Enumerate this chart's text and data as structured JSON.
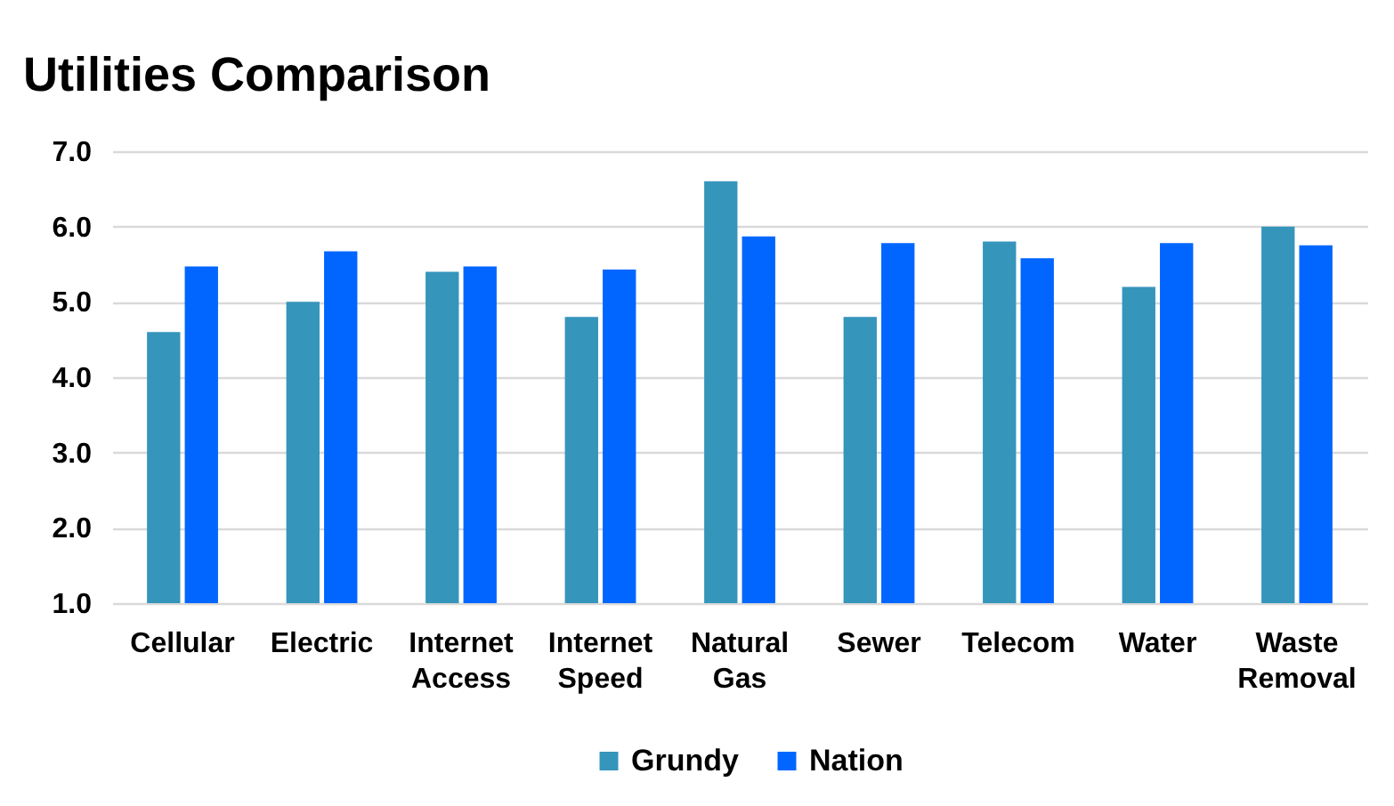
{
  "chart_data": {
    "type": "bar",
    "title": "Utilities Comparison",
    "categories": [
      "Cellular",
      "Electric",
      "Internet Access",
      "Internet Speed",
      "Natural Gas",
      "Sewer",
      "Telecom",
      "Water",
      "Waste Removal"
    ],
    "series": [
      {
        "name": "Grundy",
        "color": "#3595bb",
        "values": [
          4.6,
          5.0,
          5.4,
          4.8,
          6.6,
          4.8,
          5.8,
          5.2,
          6.0
        ]
      },
      {
        "name": "Nation",
        "color": "#0066ff",
        "values": [
          5.47,
          5.67,
          5.47,
          5.43,
          5.87,
          5.78,
          5.58,
          5.78,
          5.75
        ]
      }
    ],
    "ylim": [
      1,
      7
    ],
    "yticks": [
      {
        "value": 1,
        "label": "1.0"
      },
      {
        "value": 2,
        "label": "2.0"
      },
      {
        "value": 3,
        "label": "3.0"
      },
      {
        "value": 4,
        "label": "4.0"
      },
      {
        "value": 5,
        "label": "5.0"
      },
      {
        "value": 6,
        "label": "6.0"
      },
      {
        "value": 7,
        "label": "7.0"
      }
    ],
    "grid": "y",
    "legend": "bottom"
  }
}
